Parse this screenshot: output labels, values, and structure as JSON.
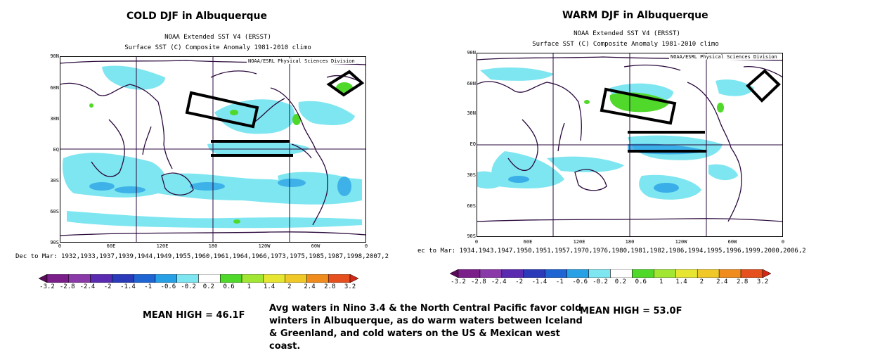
{
  "panels": [
    {
      "title": "COLD DJF in Albuquerque",
      "dataset": "NOAA Extended SST V4 (ERSST)",
      "subtitle": "Surface SST (C) Composite Anomaly 1981-2010 climo",
      "credit": "NOAA/ESRL Physical Sciences Division",
      "lat_labels": [
        "90N",
        "60N",
        "30N",
        "EQ",
        "30S",
        "60S",
        "90S"
      ],
      "lon_labels": [
        "0",
        "60E",
        "120E",
        "180",
        "120W",
        "60W",
        "0"
      ],
      "years": "Dec to Mar: 1932,1933,1937,1939,1944,1949,1955,1960,1961,1964,1966,1973,1975,1985,1987,1998,2007,2",
      "mean_high": "MEAN HIGH = 46.1F"
    },
    {
      "title": "WARM DJF in Albuquerque",
      "dataset": "NOAA Extended SST V4 (ERSST)",
      "subtitle": "Surface SST (C) Composite Anomaly 1981-2010 climo",
      "credit": "NOAA/ESRL Physical Sciences Division",
      "lat_labels": [
        "90N",
        "60N",
        "30N",
        "EQ",
        "30S",
        "60S",
        "90S"
      ],
      "lon_labels": [
        "0",
        "60E",
        "120E",
        "180",
        "120W",
        "60W",
        "0"
      ],
      "years": "ec to Mar: 1934,1943,1947,1950,1951,1957,1970,1976,1980,1981,1982,1986,1994,1995,1996,1999,2000,2006,2",
      "mean_high": "MEAN HIGH = 53.0F"
    }
  ],
  "colorbar": {
    "labels": [
      "-3.2",
      "-2.8",
      "-2.4",
      "-2",
      "-1.4",
      "-1",
      "-0.6",
      "-0.2",
      "0.2",
      "0.6",
      "1",
      "1.4",
      "2",
      "2.4",
      "2.8",
      "3.2"
    ],
    "colors": [
      "#5a0a5a",
      "#7a1f8a",
      "#8a3aa8",
      "#5a2ab0",
      "#2a3ab8",
      "#1e64d2",
      "#28a0e6",
      "#7ee6f0",
      "#ffffff",
      "#50d82a",
      "#a0e632",
      "#e6e632",
      "#f0c828",
      "#f08c1e",
      "#e6501e",
      "#d22814"
    ]
  },
  "note": "Avg waters in Nino 3.4 & the North Central Pacific favor cold winters in Albuquerque, as do warm waters between Iceland & Greenland, and cold waters on the US & Mexican west coast."
}
